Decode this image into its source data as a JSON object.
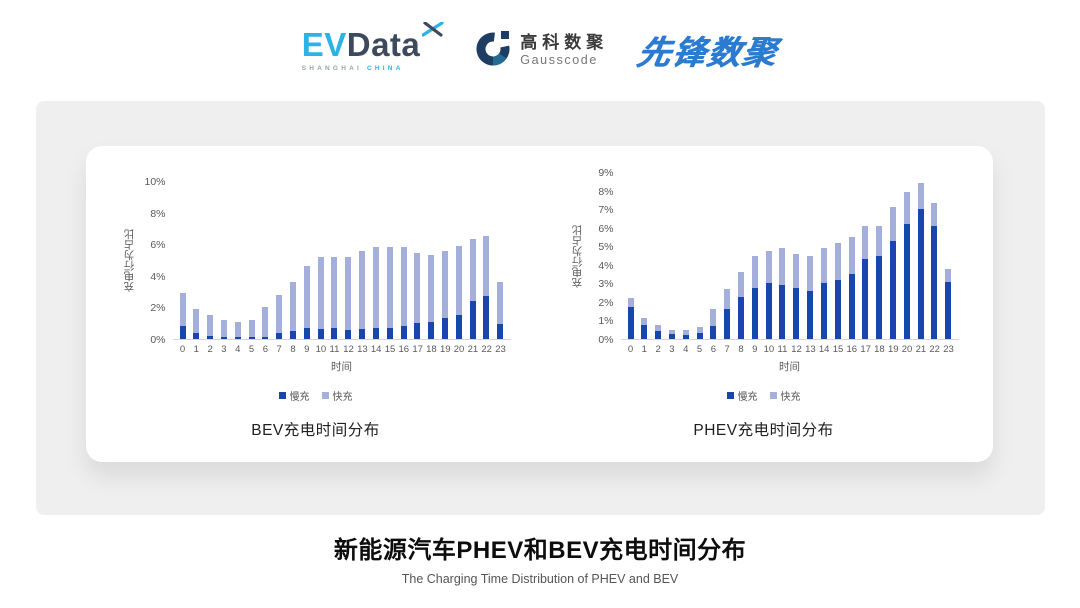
{
  "header": {
    "evdata": {
      "ev": "EV",
      "data": "Data",
      "sub_left": "SHANGHAI",
      "sub_right": "CHINA"
    },
    "gausscode": {
      "cn": "高科数聚",
      "en": "Gausscode"
    },
    "pioneer": {
      "text": "先锋数聚"
    }
  },
  "colors": {
    "slow_charge": "#1747ad",
    "fast_charge": "#a5afdb",
    "axis_text": "#595959",
    "panel_gray": "#efefef",
    "pioneer_blue": "#2b7bd0",
    "evdata_cyan": "#2bb3e6",
    "evdata_dark": "#3d4a5c"
  },
  "chart_data": [
    {
      "type": "bar",
      "stacked": true,
      "title": "BEV充电时间分布",
      "xlabel": "时间",
      "ylabel": "充电行为占比",
      "ylim": [
        0,
        10
      ],
      "y_ticks": [
        "0%",
        "2%",
        "4%",
        "6%",
        "8%",
        "10%"
      ],
      "grid": false,
      "legend_position": "bottom",
      "categories": [
        "0",
        "1",
        "2",
        "3",
        "4",
        "5",
        "6",
        "7",
        "8",
        "9",
        "10",
        "11",
        "12",
        "13",
        "14",
        "15",
        "16",
        "17",
        "18",
        "19",
        "20",
        "21",
        "22",
        "23"
      ],
      "series": [
        {
          "name": "慢充",
          "color": "#1747ad",
          "values": [
            0.8,
            0.35,
            0.2,
            0.1,
            0.1,
            0.1,
            0.15,
            0.35,
            0.5,
            0.7,
            0.65,
            0.7,
            0.6,
            0.65,
            0.7,
            0.7,
            0.85,
            1.0,
            1.1,
            1.3,
            1.55,
            2.4,
            2.7,
            0.95
          ]
        },
        {
          "name": "快充",
          "color": "#a5afdb",
          "values": [
            2.1,
            1.55,
            1.3,
            1.1,
            1.0,
            1.1,
            1.85,
            2.45,
            3.1,
            3.9,
            4.55,
            4.5,
            4.6,
            4.95,
            5.1,
            5.1,
            4.95,
            4.45,
            4.2,
            4.3,
            4.35,
            3.9,
            3.8,
            2.65
          ]
        }
      ]
    },
    {
      "type": "bar",
      "stacked": true,
      "title": "PHEV充电时间分布",
      "xlabel": "时间",
      "ylabel": "充电行为占比",
      "ylim": [
        0,
        9
      ],
      "y_ticks": [
        "0%",
        "1%",
        "2%",
        "3%",
        "4%",
        "5%",
        "6%",
        "7%",
        "8%",
        "9%"
      ],
      "grid": false,
      "legend_position": "bottom",
      "categories": [
        "0",
        "1",
        "2",
        "3",
        "4",
        "5",
        "6",
        "7",
        "8",
        "9",
        "10",
        "11",
        "12",
        "13",
        "14",
        "15",
        "16",
        "17",
        "18",
        "19",
        "20",
        "21",
        "22",
        "23"
      ],
      "series": [
        {
          "name": "慢充",
          "color": "#1747ad",
          "values": [
            1.7,
            0.75,
            0.45,
            0.25,
            0.2,
            0.3,
            0.7,
            1.6,
            2.25,
            2.75,
            3.0,
            2.9,
            2.75,
            2.6,
            3.0,
            3.2,
            3.5,
            4.3,
            4.5,
            5.3,
            6.2,
            7.0,
            6.1,
            3.05
          ]
        },
        {
          "name": "快充",
          "color": "#a5afdb",
          "values": [
            0.5,
            0.4,
            0.3,
            0.25,
            0.3,
            0.35,
            0.9,
            1.1,
            1.35,
            1.7,
            1.75,
            2.0,
            1.85,
            1.85,
            1.9,
            2.0,
            2.0,
            1.8,
            1.6,
            1.8,
            1.7,
            1.4,
            1.25,
            0.75
          ]
        }
      ]
    }
  ],
  "footer": {
    "title": "新能源汽车PHEV和BEV充电时间分布",
    "subtitle": "The Charging Time Distribution of PHEV and BEV"
  }
}
